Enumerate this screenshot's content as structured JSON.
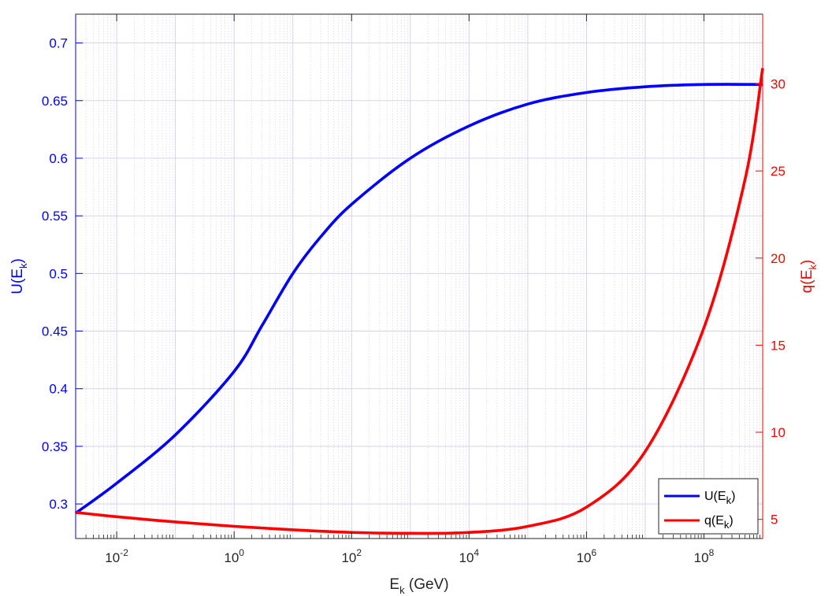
{
  "chart_data": {
    "type": "line",
    "x_scale": "log",
    "grid": true,
    "minor_grid": true,
    "legend_position": "bottom-right",
    "colors": {
      "left": "#0000ff",
      "right": "#ff0000"
    },
    "x_axis": {
      "label_main": "E",
      "label_sub": "k",
      "label_tail": " (GeV)",
      "range": [
        0.002,
        1000000000
      ],
      "tick_exponents": [
        "-2",
        "0",
        "2",
        "4",
        "6",
        "8"
      ],
      "tick_values": [
        0.01,
        1,
        100,
        10000,
        1000000,
        100000000
      ]
    },
    "y_left": {
      "label_main": "U(E",
      "label_sub": "k",
      "label_tail": ")",
      "range": [
        0.27,
        0.725
      ],
      "ticks": [
        "0.3",
        "0.35",
        "0.4",
        "0.45",
        "0.5",
        "0.55",
        "0.6",
        "0.65",
        "0.7"
      ]
    },
    "y_right": {
      "label_main": "q(E",
      "label_sub": "k",
      "label_tail": ")",
      "range": [
        3.9,
        34.0
      ],
      "ticks": [
        "5",
        "10",
        "15",
        "20",
        "25",
        "30"
      ]
    },
    "series": [
      {
        "name_main": "U(E",
        "name_sub": "k",
        "name_tail": ")",
        "axis": "left",
        "color": "#0000ff",
        "x": [
          0.002,
          0.01,
          0.1,
          1,
          3,
          10,
          30,
          100,
          1000,
          10000,
          100000,
          1000000,
          10000000,
          100000000,
          1000000000
        ],
        "y": [
          0.292,
          0.318,
          0.36,
          0.415,
          0.455,
          0.5,
          0.532,
          0.56,
          0.6,
          0.628,
          0.647,
          0.657,
          0.662,
          0.664,
          0.664
        ]
      },
      {
        "name_main": "q(E",
        "name_sub": "k",
        "name_tail": ")",
        "axis": "right",
        "color": "#ff0000",
        "x": [
          0.002,
          0.01,
          0.1,
          1,
          10,
          100,
          1000,
          10000,
          100000,
          1000000,
          10000000,
          100000000,
          500000000,
          1000000000
        ],
        "y": [
          5.4,
          5.15,
          4.85,
          4.6,
          4.4,
          4.25,
          4.2,
          4.25,
          4.6,
          5.7,
          8.9,
          16.0,
          24.5,
          30.9
        ]
      }
    ]
  }
}
